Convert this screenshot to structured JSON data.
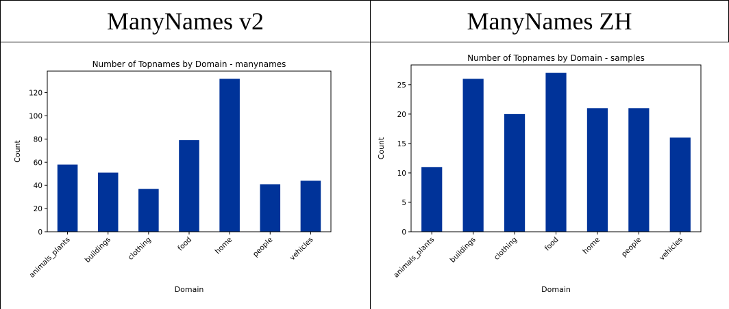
{
  "panels": [
    {
      "header": "ManyNames v2"
    },
    {
      "header": "ManyNames ZH"
    }
  ],
  "colors": {
    "bar": "#003399"
  },
  "chart_data": [
    {
      "type": "bar",
      "title": "Number of Topnames by Domain - manynames",
      "xlabel": "Domain",
      "ylabel": "Count",
      "categories": [
        "animals_plants",
        "buildings",
        "clothing",
        "food",
        "home",
        "people",
        "vehicles"
      ],
      "values": [
        58,
        51,
        37,
        79,
        132,
        41,
        44
      ],
      "ylim": [
        0,
        138.6
      ],
      "yticks": [
        0,
        20,
        40,
        60,
        80,
        100,
        120
      ],
      "grid": false,
      "legend": "none"
    },
    {
      "type": "bar",
      "title": "Number of Topnames by Domain - samples",
      "xlabel": "Domain",
      "ylabel": "Count",
      "categories": [
        "animals_plants",
        "buildings",
        "clothing",
        "food",
        "home",
        "people",
        "vehicles"
      ],
      "values": [
        11,
        26,
        20,
        27,
        21,
        21,
        16
      ],
      "ylim": [
        0,
        28.35
      ],
      "yticks": [
        0,
        5,
        10,
        15,
        20,
        25
      ],
      "grid": false,
      "legend": "none"
    }
  ]
}
